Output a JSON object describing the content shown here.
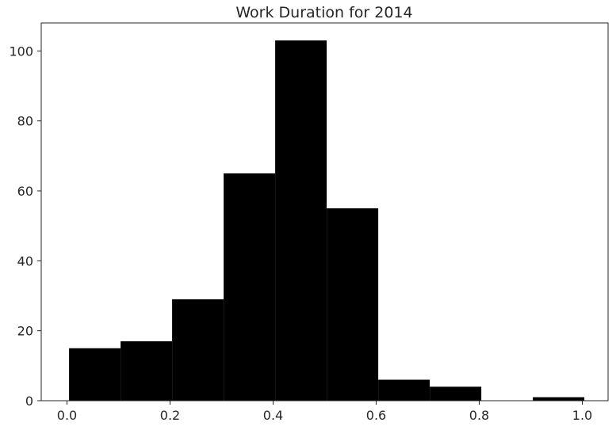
{
  "chart_data": {
    "type": "bar",
    "title": "Work Duration for 2014",
    "xlabel": "",
    "ylabel": "",
    "bins": [
      {
        "start": 0.004,
        "end": 0.104,
        "count": 15
      },
      {
        "start": 0.104,
        "end": 0.204,
        "count": 17
      },
      {
        "start": 0.204,
        "end": 0.304,
        "count": 29
      },
      {
        "start": 0.304,
        "end": 0.404,
        "count": 65
      },
      {
        "start": 0.404,
        "end": 0.504,
        "count": 103
      },
      {
        "start": 0.504,
        "end": 0.604,
        "count": 55
      },
      {
        "start": 0.604,
        "end": 0.704,
        "count": 6
      },
      {
        "start": 0.704,
        "end": 0.804,
        "count": 4
      },
      {
        "start": 0.804,
        "end": 0.904,
        "count": 0
      },
      {
        "start": 0.904,
        "end": 1.004,
        "count": 1
      }
    ],
    "xlim": [
      -0.05,
      1.05
    ],
    "ylim": [
      0,
      108
    ],
    "x_ticks": [
      {
        "value": 0.0,
        "label": "0.0"
      },
      {
        "value": 0.2,
        "label": "0.2"
      },
      {
        "value": 0.4,
        "label": "0.4"
      },
      {
        "value": 0.6,
        "label": "0.6"
      },
      {
        "value": 0.8,
        "label": "0.8"
      },
      {
        "value": 1.0,
        "label": "1.0"
      }
    ],
    "y_ticks": [
      {
        "value": 0,
        "label": "0"
      },
      {
        "value": 20,
        "label": "20"
      },
      {
        "value": 40,
        "label": "40"
      },
      {
        "value": 60,
        "label": "60"
      },
      {
        "value": 80,
        "label": "80"
      },
      {
        "value": 100,
        "label": "100"
      }
    ],
    "grid": false,
    "bar_color": "#000000"
  }
}
